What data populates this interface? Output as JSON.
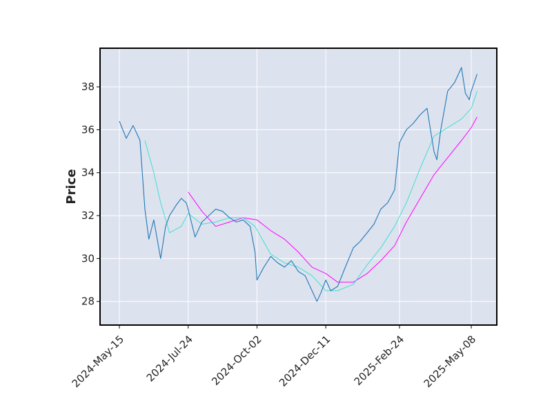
{
  "chart_data": {
    "type": "line",
    "title": "",
    "xlabel": "",
    "ylabel": "Price",
    "x_tick_labels": [
      "2024-May-15",
      "2024-Jul-24",
      "2024-Oct-02",
      "2024-Dec-11",
      "2025-Feb-24",
      "2025-May-08"
    ],
    "y_ticks": [
      28,
      30,
      32,
      34,
      36,
      38
    ],
    "ylim": [
      26.9,
      39.8
    ],
    "grid": true,
    "legend": "none",
    "colors": {
      "background": "#dde2ef",
      "grid": "#ffffff",
      "price": "#1f77b4",
      "ma_short": "#40e0d0",
      "ma_long": "#ff00ff"
    },
    "series": [
      {
        "key": "price",
        "x": [
          "2024-05-15",
          "2024-05-22",
          "2024-05-29",
          "2024-06-05",
          "2024-06-10",
          "2024-06-14",
          "2024-06-19",
          "2024-06-26",
          "2024-07-01",
          "2024-07-05",
          "2024-07-12",
          "2024-07-17",
          "2024-07-22",
          "2024-07-24",
          "2024-07-31",
          "2024-08-07",
          "2024-08-14",
          "2024-08-21",
          "2024-08-28",
          "2024-09-04",
          "2024-09-11",
          "2024-09-18",
          "2024-09-25",
          "2024-09-30",
          "2024-10-02",
          "2024-10-09",
          "2024-10-16",
          "2024-10-23",
          "2024-10-30",
          "2024-11-06",
          "2024-11-13",
          "2024-11-20",
          "2024-11-27",
          "2024-12-02",
          "2024-12-06",
          "2024-12-11",
          "2024-12-16",
          "2024-12-23",
          "2024-12-30",
          "2025-01-08",
          "2025-01-15",
          "2025-01-22",
          "2025-01-29",
          "2025-02-05",
          "2025-02-12",
          "2025-02-19",
          "2025-02-24",
          "2025-03-03",
          "2025-03-10",
          "2025-03-17",
          "2025-03-24",
          "2025-03-31",
          "2025-04-03",
          "2025-04-07",
          "2025-04-14",
          "2025-04-21",
          "2025-04-28",
          "2025-05-02",
          "2025-05-06",
          "2025-05-08",
          "2025-05-14"
        ],
        "y": [
          36.4,
          35.6,
          36.2,
          35.5,
          32.3,
          30.9,
          31.8,
          30.0,
          31.5,
          32.0,
          32.5,
          32.8,
          32.6,
          32.3,
          31.0,
          31.7,
          32.0,
          32.3,
          32.2,
          31.9,
          31.7,
          31.8,
          31.5,
          30.3,
          29.0,
          29.6,
          30.1,
          29.8,
          29.6,
          29.9,
          29.4,
          29.2,
          28.5,
          28.0,
          28.4,
          29.0,
          28.5,
          28.7,
          29.5,
          30.5,
          30.8,
          31.2,
          31.6,
          32.3,
          32.6,
          33.2,
          35.4,
          36.0,
          36.3,
          36.7,
          37.0,
          35.0,
          34.6,
          36.0,
          37.8,
          38.2,
          38.9,
          37.7,
          37.4,
          37.8,
          38.6
        ]
      },
      {
        "key": "ma_short",
        "x": [
          "2024-06-10",
          "2024-06-19",
          "2024-06-26",
          "2024-07-05",
          "2024-07-17",
          "2024-07-24",
          "2024-08-07",
          "2024-08-21",
          "2024-09-04",
          "2024-09-18",
          "2024-09-30",
          "2024-10-16",
          "2024-10-30",
          "2024-11-13",
          "2024-11-27",
          "2024-12-11",
          "2024-12-23",
          "2025-01-08",
          "2025-01-22",
          "2025-02-05",
          "2025-02-19",
          "2025-03-03",
          "2025-03-17",
          "2025-03-31",
          "2025-04-14",
          "2025-04-28",
          "2025-05-08",
          "2025-05-14"
        ],
        "y": [
          35.5,
          34.0,
          32.6,
          31.2,
          31.5,
          32.1,
          31.6,
          31.7,
          31.9,
          31.9,
          31.5,
          30.2,
          29.8,
          29.6,
          29.2,
          28.5,
          28.5,
          28.8,
          29.7,
          30.5,
          31.5,
          32.6,
          34.2,
          35.7,
          36.1,
          36.5,
          37.0,
          37.8
        ]
      },
      {
        "key": "ma_long",
        "x": [
          "2024-07-24",
          "2024-08-07",
          "2024-08-21",
          "2024-09-04",
          "2024-09-18",
          "2024-10-02",
          "2024-10-16",
          "2024-10-30",
          "2024-11-13",
          "2024-11-27",
          "2024-12-11",
          "2024-12-23",
          "2025-01-08",
          "2025-01-22",
          "2025-02-05",
          "2025-02-19",
          "2025-03-03",
          "2025-03-17",
          "2025-03-31",
          "2025-04-14",
          "2025-04-28",
          "2025-05-08",
          "2025-05-14"
        ],
        "y": [
          33.1,
          32.2,
          31.5,
          31.7,
          31.9,
          31.8,
          31.3,
          30.9,
          30.3,
          29.6,
          29.3,
          28.9,
          28.9,
          29.3,
          29.9,
          30.6,
          31.7,
          32.8,
          33.9,
          34.7,
          35.5,
          36.1,
          36.6
        ]
      }
    ]
  }
}
